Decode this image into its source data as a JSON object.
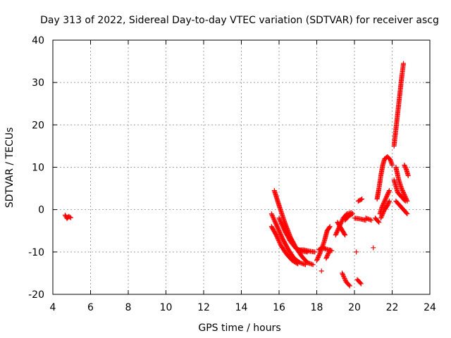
{
  "chart_data": {
    "type": "scatter",
    "title": "Day 313 of 2022, Sidereal Day-to-day VTEC variation (SDTVAR) for receiver ascg",
    "xlabel": "GPS time / hours",
    "ylabel": "SDTVAR / TECUs",
    "xlim": [
      4,
      24
    ],
    "ylim": [
      -20,
      40
    ],
    "grid": true,
    "x_ticks": [
      4,
      6,
      8,
      10,
      12,
      14,
      16,
      18,
      20,
      22,
      24
    ],
    "y_ticks": [
      -20,
      -10,
      0,
      10,
      20,
      30,
      40
    ],
    "marker": "+",
    "series": [
      {
        "name": "SDTVAR",
        "color": "#ff0000",
        "segments": [
          [
            [
              4.65,
              -1.3
            ],
            [
              4.75,
              -2.1
            ],
            [
              4.85,
              -1.6
            ],
            [
              4.95,
              -1.9
            ]
          ],
          [
            [
              15.75,
              4.5
            ],
            [
              16.0,
              1.0
            ],
            [
              16.3,
              -3.0
            ],
            [
              16.6,
              -6.5
            ],
            [
              16.9,
              -9.0
            ],
            [
              17.2,
              -11.0
            ],
            [
              17.5,
              -12.5
            ],
            [
              17.8,
              -13.0
            ]
          ],
          [
            [
              15.6,
              -1.0
            ],
            [
              15.9,
              -4.0
            ],
            [
              16.2,
              -7.0
            ],
            [
              16.5,
              -9.5
            ],
            [
              16.8,
              -11.5
            ],
            [
              17.1,
              -12.5
            ],
            [
              17.4,
              -13.0
            ]
          ],
          [
            [
              15.6,
              -4.0
            ],
            [
              15.85,
              -6.0
            ],
            [
              16.1,
              -8.5
            ],
            [
              16.4,
              -10.5
            ],
            [
              16.7,
              -12.0
            ],
            [
              17.0,
              -12.8
            ]
          ],
          [
            [
              16.0,
              -2.0
            ],
            [
              16.3,
              -5.0
            ],
            [
              16.6,
              -7.5
            ],
            [
              16.9,
              -9.2
            ],
            [
              17.2,
              -9.8
            ],
            [
              17.5,
              -10.0
            ]
          ],
          [
            [
              17.0,
              -9.5
            ],
            [
              17.3,
              -9.5
            ],
            [
              17.6,
              -9.8
            ],
            [
              17.9,
              -10.0
            ]
          ],
          [
            [
              18.0,
              -12.0
            ],
            [
              18.2,
              -10.0
            ],
            [
              18.4,
              -7.5
            ],
            [
              18.55,
              -5.0
            ],
            [
              18.7,
              -4.0
            ]
          ],
          [
            [
              18.1,
              -9.5
            ],
            [
              18.3,
              -9.0
            ],
            [
              18.5,
              -9.3
            ],
            [
              18.8,
              -9.7
            ]
          ],
          [
            [
              18.25,
              -14.5
            ]
          ],
          [
            [
              18.5,
              -11.5
            ],
            [
              18.7,
              -9.5
            ]
          ],
          [
            [
              19.0,
              -6.0
            ],
            [
              19.2,
              -4.0
            ],
            [
              19.4,
              -2.0
            ],
            [
              19.6,
              -1.0
            ],
            [
              19.85,
              -0.7
            ]
          ],
          [
            [
              19.1,
              -3.0
            ],
            [
              19.3,
              -4.5
            ],
            [
              19.5,
              -6.0
            ]
          ],
          [
            [
              19.5,
              -2.5
            ],
            [
              19.7,
              -1.5
            ],
            [
              19.9,
              -1.0
            ]
          ],
          [
            [
              19.35,
              -15.0
            ],
            [
              19.55,
              -17.0
            ],
            [
              19.75,
              -18.0
            ]
          ],
          [
            [
              20.1,
              -10.0
            ]
          ],
          [
            [
              20.15,
              -16.5
            ],
            [
              20.35,
              -17.5
            ]
          ],
          [
            [
              20.2,
              2.0
            ],
            [
              20.4,
              2.5
            ]
          ],
          [
            [
              20.0,
              -2.0
            ],
            [
              20.3,
              -2.2
            ],
            [
              20.6,
              -2.5
            ]
          ],
          [
            [
              20.6,
              -2.0
            ],
            [
              20.9,
              -2.5
            ]
          ],
          [
            [
              21.0,
              -9.0
            ]
          ],
          [
            [
              21.1,
              -2.0
            ],
            [
              21.3,
              -3.0
            ]
          ],
          [
            [
              21.2,
              2.5
            ],
            [
              21.3,
              5.0
            ],
            [
              21.4,
              8.0
            ],
            [
              21.5,
              10.5
            ],
            [
              21.6,
              12.0
            ],
            [
              21.75,
              12.5
            ],
            [
              21.9,
              11.8
            ],
            [
              22.0,
              10.5
            ]
          ],
          [
            [
              21.35,
              -1.0
            ],
            [
              21.45,
              0.5
            ],
            [
              21.55,
              1.5
            ],
            [
              21.7,
              3.0
            ],
            [
              21.85,
              4.5
            ]
          ],
          [
            [
              21.4,
              -2.0
            ],
            [
              21.5,
              -1.0
            ],
            [
              21.6,
              0.0
            ],
            [
              21.75,
              1.0
            ],
            [
              21.85,
              2.0
            ]
          ],
          [
            [
              22.1,
              15.0
            ],
            [
              22.2,
              19.0
            ],
            [
              22.3,
              23.0
            ],
            [
              22.4,
              27.0
            ],
            [
              22.5,
              31.0
            ],
            [
              22.6,
              34.5
            ]
          ],
          [
            [
              22.2,
              10.0
            ],
            [
              22.35,
              7.0
            ],
            [
              22.5,
              5.0
            ],
            [
              22.65,
              3.5
            ],
            [
              22.8,
              2.0
            ]
          ],
          [
            [
              22.1,
              7.0
            ],
            [
              22.3,
              4.0
            ],
            [
              22.5,
              3.0
            ],
            [
              22.7,
              2.0
            ]
          ],
          [
            [
              22.2,
              2.0
            ],
            [
              22.4,
              1.0
            ],
            [
              22.6,
              0.0
            ],
            [
              22.8,
              -1.0
            ]
          ],
          [
            [
              22.65,
              10.5
            ],
            [
              22.75,
              9.5
            ],
            [
              22.85,
              8.0
            ]
          ]
        ]
      }
    ]
  }
}
